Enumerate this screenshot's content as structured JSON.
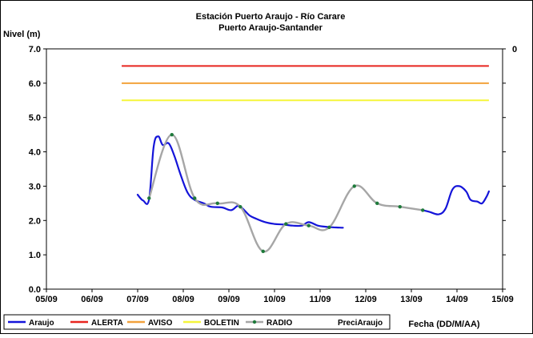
{
  "chart_data": {
    "type": "line",
    "title": "Estación Puerto Araujo - Río Carare",
    "subtitle": "Puerto Araujo-Santander",
    "ylabel": "Nivel (m)",
    "xlabel": "Fecha (DD/M/AA)",
    "ylim": [
      0,
      7
    ],
    "y_ticks": [
      "0.0",
      "1.0",
      "2.0",
      "3.0",
      "4.0",
      "5.0",
      "6.0",
      "7.0"
    ],
    "y2_tick": "0",
    "xlim": [
      0,
      10
    ],
    "x_ticks": [
      "05/09",
      "06/09",
      "07/09",
      "08/09",
      "09/09",
      "10/09",
      "11/09",
      "12/09",
      "13/09",
      "14/09",
      "15/09"
    ],
    "grid": false,
    "legend_position": "bottom",
    "thresholds": [
      {
        "name": "ALERTA",
        "value": 6.5,
        "x_start": 1.65,
        "x_end": 9.7,
        "color": "#e8251f"
      },
      {
        "name": "AVISO",
        "value": 6.0,
        "x_start": 1.65,
        "x_end": 9.7,
        "color": "#f2a23c"
      },
      {
        "name": "BOLETIN",
        "value": 5.5,
        "x_start": 1.65,
        "x_end": 9.7,
        "color": "#f5f53a"
      }
    ],
    "series": [
      {
        "name": "Araujo",
        "color": "#1414d9",
        "x": [
          2.0,
          2.12,
          2.25,
          2.35,
          2.45,
          2.55,
          2.68,
          2.8,
          2.95,
          3.1,
          3.25,
          3.45,
          3.6,
          3.85,
          4.05,
          4.2,
          4.3,
          4.45,
          4.6,
          4.8,
          5.0,
          5.2,
          5.4,
          5.6,
          5.75,
          5.95,
          6.1,
          6.3,
          6.5
        ],
        "values": [
          2.75,
          2.58,
          2.62,
          4.15,
          4.45,
          4.2,
          4.25,
          3.9,
          3.3,
          2.8,
          2.6,
          2.5,
          2.4,
          2.38,
          2.3,
          2.43,
          2.35,
          2.15,
          2.05,
          1.95,
          1.9,
          1.88,
          1.85,
          1.85,
          1.95,
          1.85,
          1.82,
          1.8,
          1.79
        ]
      },
      {
        "name": "ALERTA",
        "color": "#e8251f",
        "x": [],
        "values": []
      },
      {
        "name": "AVISO",
        "color": "#f2a23c",
        "x": [],
        "values": []
      },
      {
        "name": "BOLETIN",
        "color": "#f5f53a",
        "x": [],
        "values": []
      },
      {
        "name": "RADIO",
        "color": "#a6a6a6",
        "marker_color": "#1d7a3a",
        "x": [
          2.25,
          2.75,
          3.25,
          3.75,
          4.25,
          4.75,
          5.25,
          5.75,
          6.2,
          6.75,
          7.25,
          7.75,
          8.25
        ],
        "values": [
          2.65,
          4.5,
          2.65,
          2.5,
          2.4,
          1.1,
          1.9,
          1.85,
          1.8,
          3.0,
          2.5,
          2.4,
          2.3
        ]
      },
      {
        "name": "Araujo",
        "color": "#1414d9",
        "x": [
          8.25,
          8.4,
          8.6,
          8.75,
          8.9,
          9.05,
          9.2,
          9.3,
          9.45,
          9.55,
          9.65,
          9.7
        ],
        "values": [
          2.3,
          2.25,
          2.18,
          2.35,
          2.9,
          3.0,
          2.85,
          2.6,
          2.55,
          2.5,
          2.7,
          2.85
        ]
      },
      {
        "name": "PreciAraujo",
        "color": "#4d4d4d",
        "x": [],
        "values": []
      }
    ],
    "legend": [
      {
        "label": "Araujo",
        "color": "#1414d9",
        "style": "line"
      },
      {
        "label": "ALERTA",
        "color": "#e8251f",
        "style": "line"
      },
      {
        "label": "AVISO",
        "color": "#f2a23c",
        "style": "line"
      },
      {
        "label": "BOLETIN",
        "color": "#f5f53a",
        "style": "line"
      },
      {
        "label": "RADIO",
        "color": "#a6a6a6",
        "style": "line-marker",
        "marker_color": "#1d7a3a"
      },
      {
        "label": "PreciAraujo",
        "color": "#4d4d4d",
        "style": "none"
      }
    ]
  }
}
